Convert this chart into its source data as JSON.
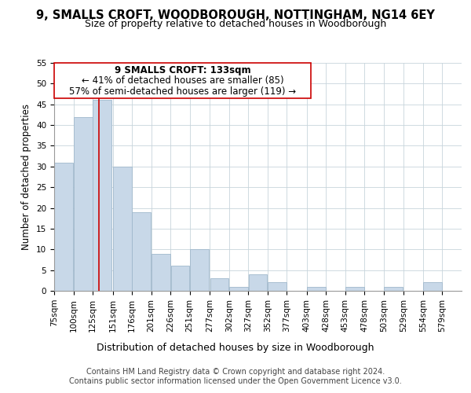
{
  "title": "9, SMALLS CROFT, WOODBOROUGH, NOTTINGHAM, NG14 6EY",
  "subtitle": "Size of property relative to detached houses in Woodborough",
  "xlabel": "Distribution of detached houses by size in Woodborough",
  "ylabel": "Number of detached properties",
  "bar_left_edges": [
    75,
    100,
    125,
    151,
    176,
    201,
    226,
    251,
    277,
    302,
    327,
    352,
    377,
    403,
    428,
    453,
    478,
    503,
    529,
    554
  ],
  "bar_heights": [
    31,
    42,
    46,
    30,
    19,
    9,
    6,
    10,
    3,
    1,
    4,
    2,
    0,
    1,
    0,
    1,
    0,
    1,
    0,
    2
  ],
  "bar_widths": [
    25,
    25,
    25,
    25,
    25,
    25,
    25,
    25,
    25,
    25,
    25,
    25,
    25,
    25,
    25,
    25,
    25,
    25,
    25,
    25
  ],
  "bar_color": "#c8d8e8",
  "bar_edge_color": "#a0b8cc",
  "property_line_x": 133,
  "property_line_color": "#cc0000",
  "ylim": [
    0,
    55
  ],
  "yticks": [
    0,
    5,
    10,
    15,
    20,
    25,
    30,
    35,
    40,
    45,
    50,
    55
  ],
  "xtick_labels": [
    "75sqm",
    "100sqm",
    "125sqm",
    "151sqm",
    "176sqm",
    "201sqm",
    "226sqm",
    "251sqm",
    "277sqm",
    "302sqm",
    "327sqm",
    "352sqm",
    "377sqm",
    "403sqm",
    "428sqm",
    "453sqm",
    "478sqm",
    "503sqm",
    "529sqm",
    "554sqm",
    "579sqm"
  ],
  "xtick_positions": [
    75,
    100,
    125,
    151,
    176,
    201,
    226,
    251,
    277,
    302,
    327,
    352,
    377,
    403,
    428,
    453,
    478,
    503,
    529,
    554,
    579
  ],
  "ann_line1": "9 SMALLS CROFT: 133sqm",
  "ann_line2": "← 41% of detached houses are smaller (85)",
  "ann_line3": "57% of semi-detached houses are larger (119) →",
  "footer_text": "Contains HM Land Registry data © Crown copyright and database right 2024.\nContains public sector information licensed under the Open Government Licence v3.0.",
  "bg_color": "#ffffff",
  "grid_color": "#c8d4dc",
  "title_fontsize": 10.5,
  "subtitle_fontsize": 9,
  "xlabel_fontsize": 9,
  "ylabel_fontsize": 8.5,
  "tick_fontsize": 7.5,
  "ann_fontsize": 8.5,
  "footer_fontsize": 7
}
